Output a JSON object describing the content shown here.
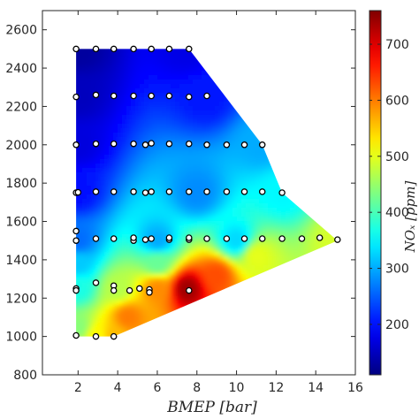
{
  "chart_data": {
    "type": "heatmap",
    "title": "",
    "xlabel": "BMEP  [bar]",
    "ylabel": "",
    "colorbar_label": "NOₓ [ppm]",
    "xlim": [
      0.2,
      16
    ],
    "ylim": [
      800,
      2700
    ],
    "x_ticks": [
      2,
      4,
      6,
      8,
      10,
      12,
      14,
      16
    ],
    "y_ticks": [
      800,
      1000,
      1200,
      1400,
      1600,
      1800,
      2000,
      2200,
      2400,
      2600
    ],
    "colorbar_range": [
      110,
      760
    ],
    "colorbar_ticks": [
      200,
      300,
      400,
      500,
      600,
      700
    ],
    "colormap": "jet",
    "grid": false,
    "region_boundary": [
      [
        1.9,
        2500
      ],
      [
        7.6,
        2500
      ],
      [
        11.3,
        2000
      ],
      [
        12.3,
        1750
      ],
      [
        15.1,
        1500
      ],
      [
        3.8,
        1000
      ],
      [
        1.9,
        1000
      ]
    ],
    "field_samples": [
      {
        "x": 2.0,
        "y": 2500,
        "value": 130
      },
      {
        "x": 7.5,
        "y": 2500,
        "value": 175
      },
      {
        "x": 2.0,
        "y": 2250,
        "value": 150
      },
      {
        "x": 8.5,
        "y": 2250,
        "value": 205
      },
      {
        "x": 2.0,
        "y": 2000,
        "value": 170
      },
      {
        "x": 11.3,
        "y": 2000,
        "value": 300
      },
      {
        "x": 2.0,
        "y": 1750,
        "value": 200
      },
      {
        "x": 8.0,
        "y": 1750,
        "value": 280
      },
      {
        "x": 12.3,
        "y": 1750,
        "value": 350
      },
      {
        "x": 2.0,
        "y": 1500,
        "value": 260
      },
      {
        "x": 6.0,
        "y": 1500,
        "value": 300
      },
      {
        "x": 10.0,
        "y": 1500,
        "value": 330
      },
      {
        "x": 15.1,
        "y": 1500,
        "value": 490
      },
      {
        "x": 2.0,
        "y": 1380,
        "value": 320
      },
      {
        "x": 6.0,
        "y": 1380,
        "value": 420
      },
      {
        "x": 11.0,
        "y": 1420,
        "value": 500
      },
      {
        "x": 2.0,
        "y": 1250,
        "value": 370
      },
      {
        "x": 4.0,
        "y": 1250,
        "value": 470
      },
      {
        "x": 6.0,
        "y": 1250,
        "value": 590
      },
      {
        "x": 7.5,
        "y": 1250,
        "value": 740
      },
      {
        "x": 9.0,
        "y": 1320,
        "value": 630
      },
      {
        "x": 2.0,
        "y": 1050,
        "value": 440
      },
      {
        "x": 3.0,
        "y": 1000,
        "value": 520
      },
      {
        "x": 3.8,
        "y": 1000,
        "value": 560
      },
      {
        "x": 4.5,
        "y": 1100,
        "value": 600
      }
    ],
    "measurement_points": [
      {
        "x": 1.9,
        "y": 2500
      },
      {
        "x": 2.9,
        "y": 2500
      },
      {
        "x": 3.8,
        "y": 2500
      },
      {
        "x": 4.8,
        "y": 2500
      },
      {
        "x": 5.7,
        "y": 2500
      },
      {
        "x": 6.6,
        "y": 2500
      },
      {
        "x": 7.6,
        "y": 2500
      },
      {
        "x": 1.9,
        "y": 2250
      },
      {
        "x": 2.9,
        "y": 2260
      },
      {
        "x": 3.8,
        "y": 2255
      },
      {
        "x": 4.8,
        "y": 2255
      },
      {
        "x": 5.7,
        "y": 2255
      },
      {
        "x": 6.6,
        "y": 2255
      },
      {
        "x": 7.6,
        "y": 2250
      },
      {
        "x": 8.5,
        "y": 2255
      },
      {
        "x": 1.9,
        "y": 2000
      },
      {
        "x": 2.9,
        "y": 2005
      },
      {
        "x": 3.8,
        "y": 2005
      },
      {
        "x": 4.8,
        "y": 2005
      },
      {
        "x": 5.4,
        "y": 2000
      },
      {
        "x": 5.7,
        "y": 2008
      },
      {
        "x": 6.6,
        "y": 2005
      },
      {
        "x": 7.6,
        "y": 2005
      },
      {
        "x": 8.5,
        "y": 2000
      },
      {
        "x": 9.5,
        "y": 2000
      },
      {
        "x": 10.4,
        "y": 2000
      },
      {
        "x": 11.3,
        "y": 2000
      },
      {
        "x": 1.9,
        "y": 1750
      },
      {
        "x": 2.0,
        "y": 1752
      },
      {
        "x": 2.9,
        "y": 1755
      },
      {
        "x": 3.8,
        "y": 1755
      },
      {
        "x": 4.8,
        "y": 1755
      },
      {
        "x": 5.4,
        "y": 1750
      },
      {
        "x": 5.7,
        "y": 1755
      },
      {
        "x": 6.6,
        "y": 1755
      },
      {
        "x": 7.6,
        "y": 1755
      },
      {
        "x": 8.5,
        "y": 1755
      },
      {
        "x": 9.5,
        "y": 1755
      },
      {
        "x": 10.4,
        "y": 1755
      },
      {
        "x": 11.3,
        "y": 1755
      },
      {
        "x": 12.3,
        "y": 1750
      },
      {
        "x": 1.9,
        "y": 1550
      },
      {
        "x": 1.9,
        "y": 1500
      },
      {
        "x": 2.9,
        "y": 1510
      },
      {
        "x": 3.8,
        "y": 1510
      },
      {
        "x": 4.8,
        "y": 1500
      },
      {
        "x": 4.8,
        "y": 1515
      },
      {
        "x": 5.4,
        "y": 1505
      },
      {
        "x": 5.7,
        "y": 1510
      },
      {
        "x": 6.6,
        "y": 1505
      },
      {
        "x": 6.6,
        "y": 1515
      },
      {
        "x": 7.6,
        "y": 1505
      },
      {
        "x": 7.6,
        "y": 1515
      },
      {
        "x": 8.5,
        "y": 1510
      },
      {
        "x": 9.5,
        "y": 1510
      },
      {
        "x": 10.4,
        "y": 1510
      },
      {
        "x": 11.3,
        "y": 1510
      },
      {
        "x": 12.3,
        "y": 1510
      },
      {
        "x": 13.3,
        "y": 1510
      },
      {
        "x": 14.2,
        "y": 1515
      },
      {
        "x": 15.1,
        "y": 1505
      },
      {
        "x": 1.9,
        "y": 1250
      },
      {
        "x": 1.9,
        "y": 1240
      },
      {
        "x": 2.9,
        "y": 1280
      },
      {
        "x": 3.8,
        "y": 1265
      },
      {
        "x": 3.8,
        "y": 1240
      },
      {
        "x": 4.6,
        "y": 1240
      },
      {
        "x": 5.1,
        "y": 1250
      },
      {
        "x": 5.6,
        "y": 1245
      },
      {
        "x": 5.6,
        "y": 1230
      },
      {
        "x": 7.6,
        "y": 1240
      },
      {
        "x": 1.9,
        "y": 1005
      },
      {
        "x": 2.9,
        "y": 1000
      },
      {
        "x": 3.8,
        "y": 1000
      }
    ]
  },
  "icons": {
    "marker": "circle-marker-icon"
  },
  "colors": {
    "marker_fill": "#ffffff",
    "marker_stroke": "#000000",
    "axis": "#262626"
  }
}
